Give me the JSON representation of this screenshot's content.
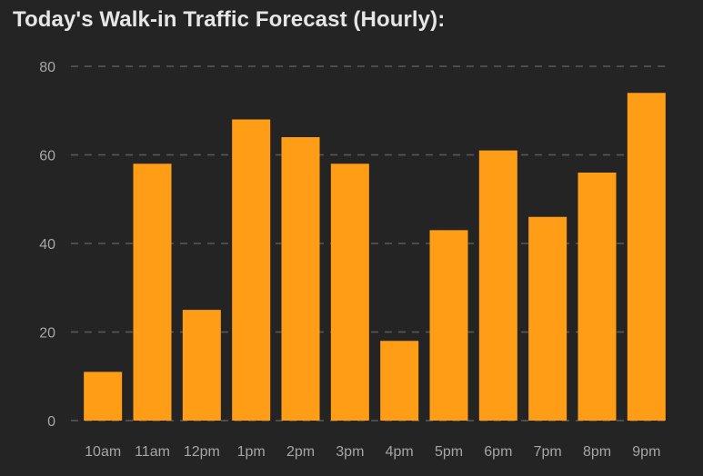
{
  "chart_data": {
    "type": "bar",
    "title": "Today's Walk-in Traffic Forecast (Hourly):",
    "xlabel": "",
    "ylabel": "",
    "categories": [
      "10am",
      "11am",
      "12pm",
      "1pm",
      "2pm",
      "3pm",
      "4pm",
      "5pm",
      "6pm",
      "7pm",
      "8pm",
      "9pm"
    ],
    "values": [
      11,
      58,
      25,
      68,
      64,
      58,
      18,
      43,
      61,
      46,
      56,
      74
    ],
    "ylim": [
      0,
      80
    ],
    "yticks": [
      0,
      20,
      40,
      60,
      80
    ],
    "grid": "horizontal dashed",
    "legend": "none",
    "colors": {
      "background": "#242424",
      "bar": "#ff9e16",
      "grid": "#5a5a5a",
      "tick_text": "#a6a6a6",
      "title_text": "#e6e6e6"
    }
  }
}
